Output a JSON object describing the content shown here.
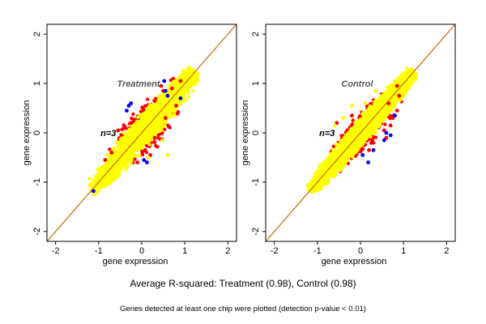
{
  "chart_data": [
    {
      "type": "scatter",
      "panel_label": "Treatment",
      "n_label": "n=3",
      "xlabel": "gene expression",
      "ylabel": "gene expression",
      "xlim": [
        -2.2,
        2.2
      ],
      "ylim": [
        -2.2,
        2.2
      ],
      "ticks": [
        -2,
        -1,
        0,
        1,
        2
      ],
      "grid": false,
      "legend": "none",
      "reference_line": {
        "slope": 1,
        "intercept": 0,
        "color": "#cc6600"
      },
      "point_colors": {
        "low_detection": "#0000ff",
        "high_ratio": "#ff0000",
        "within_range": "#ffff00"
      },
      "bulk": {
        "x_range": [
          -1.15,
          1.2
        ],
        "spread": 0.18
      },
      "outliers": {
        "red": [
          [
            -0.85,
            -0.55
          ],
          [
            -0.7,
            -0.4
          ],
          [
            0.3,
            0.65
          ],
          [
            0.5,
            0.85
          ],
          [
            0.7,
            0.9
          ],
          [
            0.55,
            0.3
          ],
          [
            0.3,
            -0.1
          ],
          [
            0.2,
            -0.45
          ],
          [
            -0.25,
            0.2
          ],
          [
            -0.55,
            0.05
          ],
          [
            0.8,
            0.55
          ],
          [
            -0.1,
            -0.6
          ],
          [
            0.45,
            0.95
          ],
          [
            0.9,
            1.05
          ]
        ],
        "blue": [
          [
            0.55,
            0.85
          ],
          [
            0.6,
            0.75
          ],
          [
            0.52,
            1.05
          ],
          [
            -0.3,
            0.55
          ],
          [
            -0.25,
            0.6
          ],
          [
            0.05,
            -0.55
          ],
          [
            0.12,
            -0.6
          ],
          [
            -1.12,
            -1.18
          ],
          [
            -0.35,
            0.45
          ],
          [
            0.9,
            0.7
          ]
        ],
        "yellow": [
          [
            0.6,
            -0.45
          ],
          [
            0.48,
            -0.15
          ],
          [
            0.9,
            0.6
          ],
          [
            0.75,
            0.35
          ],
          [
            -0.35,
            -0.6
          ],
          [
            0.15,
            -0.5
          ],
          [
            0.95,
            0.75
          ]
        ]
      }
    },
    {
      "type": "scatter",
      "panel_label": "Control",
      "n_label": "n=3",
      "xlabel": "gene expression",
      "ylabel": "gene expression",
      "xlim": [
        -2.2,
        2.2
      ],
      "ylim": [
        -2.2,
        2.2
      ],
      "ticks": [
        -2,
        -1,
        0,
        1,
        2
      ],
      "grid": false,
      "legend": "none",
      "reference_line": {
        "slope": 1,
        "intercept": 0,
        "color": "#cc6600"
      },
      "point_colors": {
        "low_detection": "#0000ff",
        "high_ratio": "#ff0000",
        "within_range": "#ffff00"
      },
      "bulk": {
        "x_range": [
          -1.15,
          1.2
        ],
        "spread": 0.15
      },
      "outliers": {
        "red": [
          [
            0.7,
            0.15
          ],
          [
            0.75,
            0.3
          ],
          [
            0.85,
            0.45
          ],
          [
            0.55,
            0.05
          ],
          [
            0.3,
            -0.2
          ],
          [
            0.6,
            -0.1
          ],
          [
            -0.2,
            0.35
          ],
          [
            0.9,
            0.75
          ],
          [
            0.65,
            0.6
          ],
          [
            -0.55,
            0.2
          ],
          [
            0.2,
            -0.35
          ],
          [
            0.85,
            0.95
          ]
        ],
        "blue": [
          [
            0.55,
            -0.15
          ],
          [
            0.6,
            0.0
          ],
          [
            0.3,
            -0.35
          ],
          [
            0.18,
            -0.6
          ],
          [
            0.05,
            -0.45
          ],
          [
            0.8,
            0.35
          ],
          [
            0.7,
            -0.05
          ]
        ],
        "yellow": [
          [
            -0.4,
            0.3
          ],
          [
            -0.2,
            0.55
          ],
          [
            0.1,
            0.6
          ],
          [
            0.35,
            0.85
          ],
          [
            -0.6,
            0.15
          ]
        ]
      }
    }
  ],
  "summary": {
    "title": "Average R-squared: Treatment (0.98), Control (0.98)",
    "footnote": "Genes detected at least one chip were plotted (detection p-value < 0.01)"
  }
}
